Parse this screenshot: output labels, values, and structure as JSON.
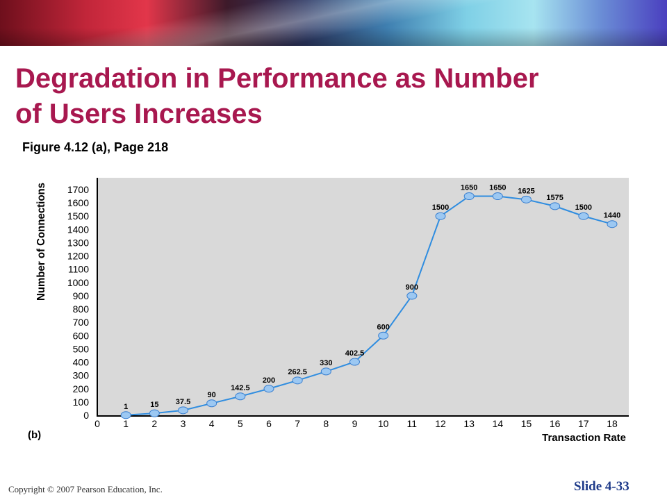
{
  "slide": {
    "title_line1": "Degradation in Performance as Number",
    "title_line2": "of Users Increases",
    "subtitle": "Figure 4.12 (a), Page 218",
    "copyright": "Copyright © 2007 Pearson Education, Inc.",
    "slide_number": "Slide 4-33"
  },
  "chart_data": {
    "type": "line",
    "panel_label": "(b)",
    "xlabel": "Transaction Rate",
    "ylabel": "Number of Connections",
    "x_ticks": [
      0,
      1,
      2,
      3,
      4,
      5,
      6,
      7,
      8,
      9,
      10,
      11,
      12,
      13,
      14,
      15,
      16,
      17,
      18
    ],
    "y_ticks": [
      0,
      100,
      200,
      300,
      400,
      500,
      600,
      700,
      800,
      900,
      1000,
      1100,
      1200,
      1300,
      1400,
      1500,
      1600,
      1700
    ],
    "xlim": [
      0,
      18
    ],
    "ylim": [
      0,
      1700
    ],
    "grid": false,
    "series": [
      {
        "x": [
          1,
          2,
          3,
          4,
          5,
          6,
          7,
          8,
          9,
          10,
          11,
          12,
          13,
          14,
          15,
          16,
          17,
          18
        ],
        "y": [
          1,
          15,
          37.5,
          90,
          142.5,
          200,
          262.5,
          330,
          402.5,
          600,
          900,
          1500,
          1650,
          1650,
          1625,
          1575,
          1500,
          1440
        ],
        "labels": [
          "1",
          "15",
          "37.5",
          "90",
          "142.5",
          "200",
          "262.5",
          "330",
          "402.5",
          "600",
          "900",
          "1500",
          "1650",
          "1650",
          "1625",
          "1575",
          "1500",
          "1440"
        ]
      }
    ],
    "colors": {
      "line": "#2f8de0",
      "marker": "#9cc8f2",
      "plot_bg": "#d9d9d9"
    }
  }
}
